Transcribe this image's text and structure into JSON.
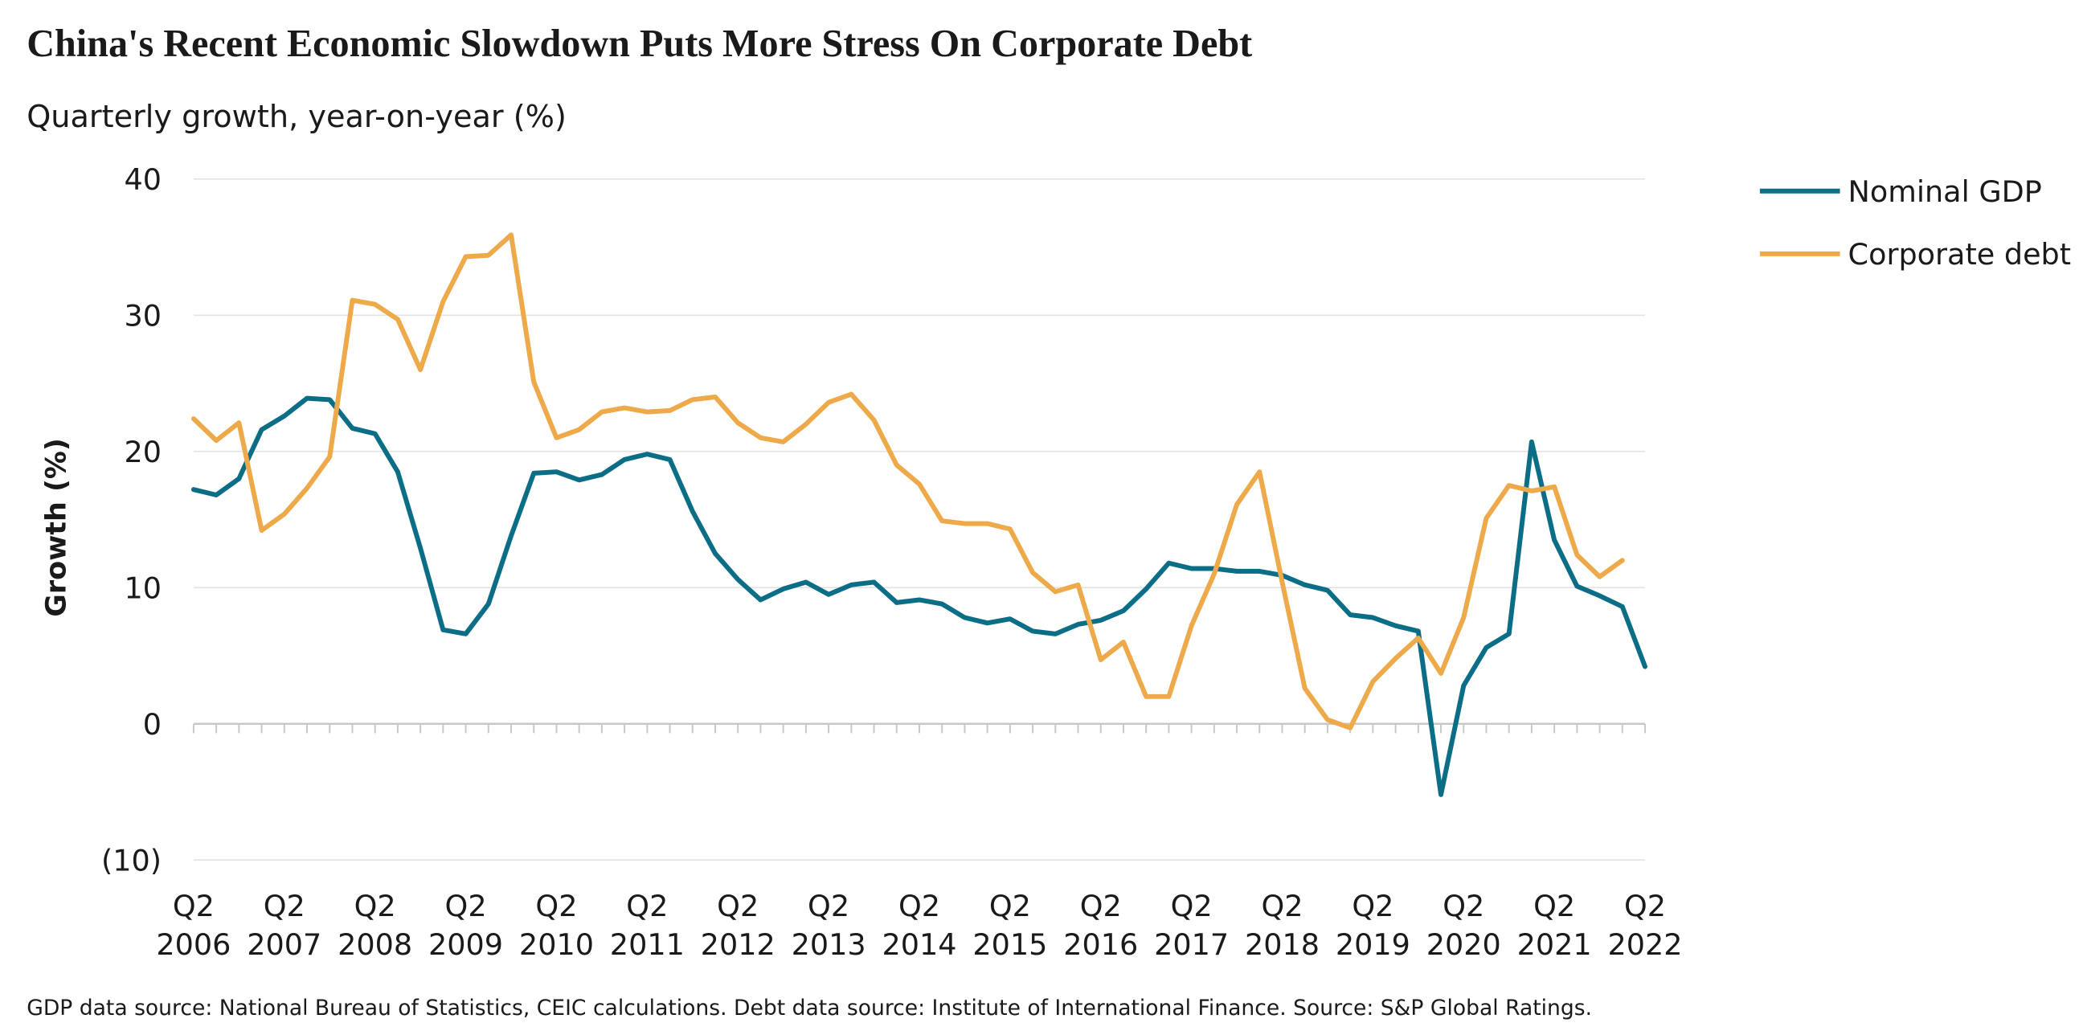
{
  "chart_data": {
    "type": "line",
    "title": "China's Recent Economic Slowdown Puts More Stress On Corporate Debt",
    "subtitle": "Quarterly growth, year-on-year (%)",
    "y_label": "Growth (%)",
    "note": "GDP data source: National Bureau of Statistics, CEIC calculations. Debt data source: Institute of International Finance. Source: S&P Global Ratings.",
    "categories": [
      "Q2 2006",
      null,
      null,
      null,
      "Q2 2007",
      null,
      null,
      null,
      "Q2 2008",
      null,
      null,
      null,
      "Q2 2009",
      null,
      null,
      null,
      "Q2 2010",
      null,
      null,
      null,
      "Q2 2011",
      null,
      null,
      null,
      "Q2 2012",
      null,
      null,
      null,
      "Q2 2013",
      null,
      null,
      null,
      "Q2 2014",
      null,
      null,
      null,
      "Q2 2015",
      null,
      null,
      null,
      "Q2 2016",
      null,
      null,
      null,
      "Q2 2017",
      null,
      null,
      null,
      "Q2 2018",
      null,
      null,
      null,
      "Q2 2019",
      null,
      null,
      null,
      "Q2 2020",
      null,
      null,
      null,
      "Q2 2021",
      null,
      null,
      null,
      "Q2 2022"
    ],
    "series": [
      {
        "name": "Nominal GDP",
        "color": "#0b6e86",
        "values": [
          17.2,
          16.8,
          18.0,
          21.6,
          22.6,
          23.9,
          23.8,
          21.7,
          21.3,
          18.5,
          12.9,
          6.9,
          6.6,
          8.8,
          13.8,
          18.4,
          18.5,
          17.9,
          18.3,
          19.4,
          19.8,
          19.4,
          15.6,
          12.5,
          10.6,
          9.1,
          9.9,
          10.4,
          9.5,
          10.2,
          10.4,
          8.9,
          9.1,
          8.8,
          7.8,
          7.4,
          7.7,
          6.8,
          6.6,
          7.3,
          7.6,
          8.3,
          9.9,
          11.8,
          11.4,
          11.4,
          11.2,
          11.2,
          10.9,
          10.2,
          9.8,
          8.0,
          7.8,
          7.2,
          6.8,
          -5.2,
          2.8,
          5.6,
          6.6,
          20.7,
          13.5,
          10.1,
          9.4,
          8.6,
          4.2
        ]
      },
      {
        "name": "Corporate debt",
        "color": "#eeaa4a",
        "values": [
          22.4,
          20.8,
          22.1,
          14.2,
          15.4,
          17.3,
          19.6,
          31.1,
          30.8,
          29.7,
          26.0,
          31.0,
          34.3,
          34.4,
          35.9,
          25.1,
          21.0,
          21.6,
          22.9,
          23.2,
          22.9,
          23.0,
          23.8,
          24.0,
          22.1,
          21.0,
          20.7,
          22.0,
          23.6,
          24.2,
          22.3,
          19.0,
          17.6,
          14.9,
          14.7,
          14.7,
          14.3,
          11.1,
          9.7,
          10.2,
          4.7,
          6.0,
          2.0,
          2.0,
          7.2,
          11.0,
          16.1,
          18.5,
          10.4,
          2.6,
          0.3,
          -0.3,
          3.1,
          4.8,
          6.3,
          3.7,
          7.8,
          15.1,
          17.5,
          17.1,
          17.4,
          12.4,
          10.8,
          12.0,
          null
        ]
      }
    ],
    "ylim": [
      -10,
      40
    ],
    "yticks": [
      {
        "value": -10,
        "label": "(10)"
      },
      0,
      10,
      20,
      30,
      40
    ],
    "grid": true,
    "legend": "right"
  }
}
